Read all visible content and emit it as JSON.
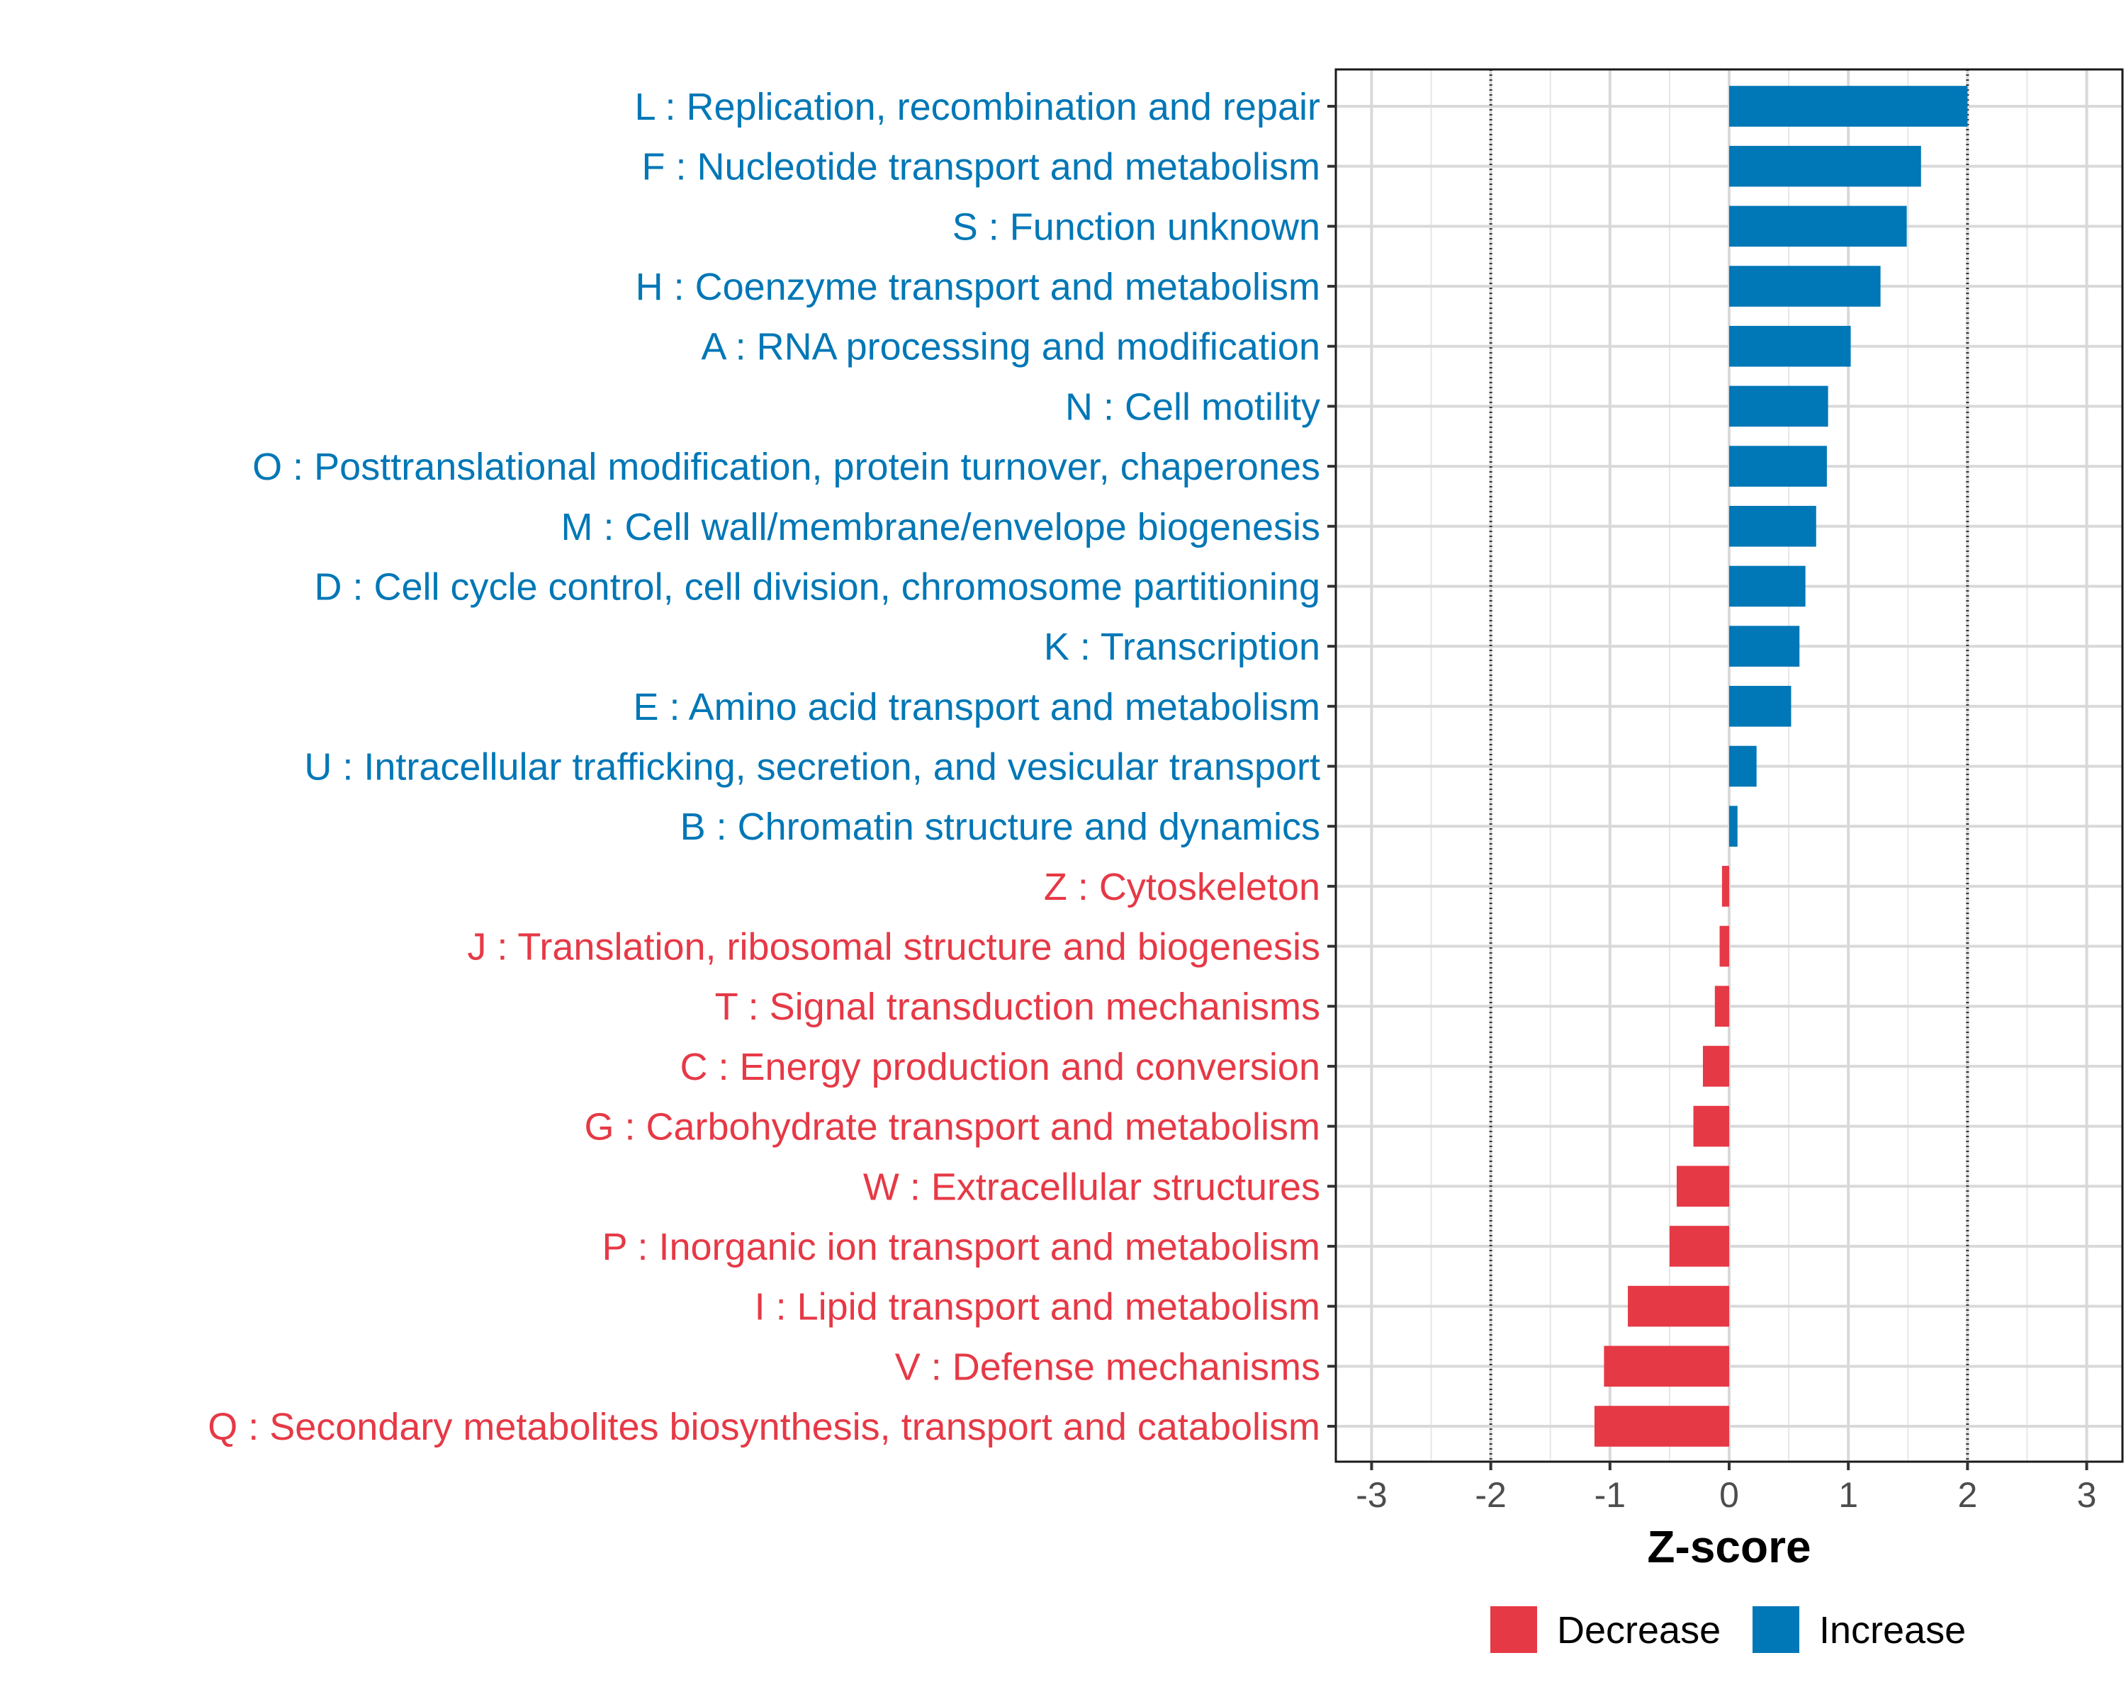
{
  "chart_data": {
    "type": "bar",
    "orientation": "horizontal",
    "title": "",
    "xlabel": "Z-score",
    "ylabel": "",
    "xlim": [
      -3.3,
      3.3
    ],
    "xticks": [
      -3,
      -2,
      -1,
      0,
      1,
      2,
      3
    ],
    "xtick_labels": [
      "-3",
      "-2",
      "-1",
      "0",
      "1",
      "2",
      "3"
    ],
    "reference_lines": [
      -2,
      2
    ],
    "grid": true,
    "legend_position": "bottom",
    "colors": {
      "Decrease": "#E63946",
      "Increase": "#0077B6"
    },
    "legend": [
      {
        "label": "Decrease",
        "color": "#E63946"
      },
      {
        "label": "Increase",
        "color": "#0077B6"
      }
    ],
    "categories": [
      "L : Replication, recombination and repair",
      "F : Nucleotide transport and metabolism",
      "S : Function unknown",
      "H : Coenzyme transport and metabolism",
      "A : RNA processing and modification",
      "N : Cell motility",
      "O : Posttranslational modification, protein turnover, chaperones",
      "M : Cell wall/membrane/envelope biogenesis",
      "D : Cell cycle control, cell division, chromosome partitioning",
      "K : Transcription",
      "E : Amino acid transport and metabolism",
      "U : Intracellular trafficking, secretion, and vesicular transport",
      "B : Chromatin structure and dynamics",
      "Z : Cytoskeleton",
      "J : Translation, ribosomal structure and biogenesis",
      "T : Signal transduction mechanisms",
      "C : Energy production and conversion",
      "G : Carbohydrate transport and metabolism",
      "W : Extracellular structures",
      "P : Inorganic ion transport and metabolism",
      "I : Lipid transport and metabolism",
      "V : Defense mechanisms",
      "Q : Secondary metabolites biosynthesis, transport and catabolism"
    ],
    "values": [
      2.0,
      1.61,
      1.49,
      1.27,
      1.02,
      0.83,
      0.82,
      0.73,
      0.64,
      0.59,
      0.52,
      0.23,
      0.07,
      -0.06,
      -0.08,
      -0.12,
      -0.22,
      -0.3,
      -0.44,
      -0.5,
      -0.85,
      -1.05,
      -1.13
    ],
    "groups": [
      "Increase",
      "Increase",
      "Increase",
      "Increase",
      "Increase",
      "Increase",
      "Increase",
      "Increase",
      "Increase",
      "Increase",
      "Increase",
      "Increase",
      "Increase",
      "Decrease",
      "Decrease",
      "Decrease",
      "Decrease",
      "Decrease",
      "Decrease",
      "Decrease",
      "Decrease",
      "Decrease",
      "Decrease"
    ]
  }
}
